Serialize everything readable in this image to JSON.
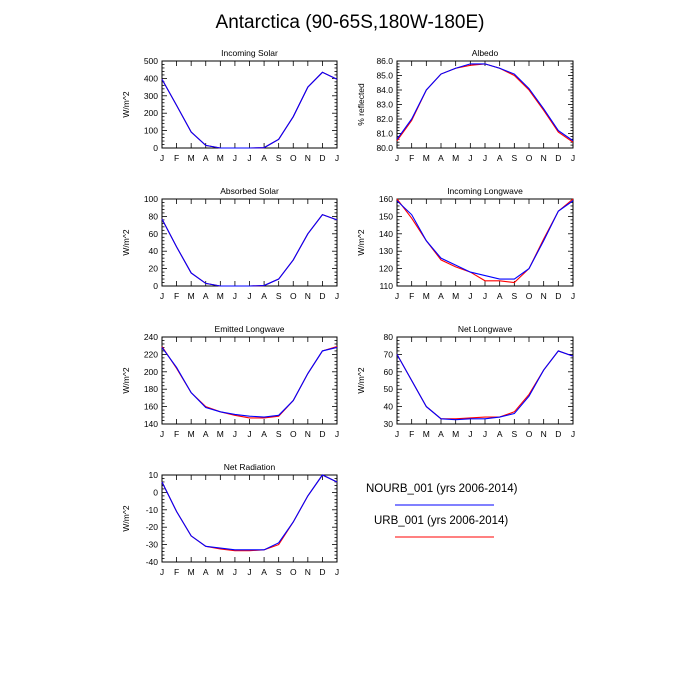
{
  "title": "Antarctica (90-65S,180W-180E)",
  "colors": {
    "NOURB_001": "#0000ff",
    "URB_001": "#ff0000"
  },
  "legend": [
    {
      "label": "NOURB_001 (yrs 2006-2014)",
      "color": "#0000ff"
    },
    {
      "label": "URB_001 (yrs 2006-2014)",
      "color": "#ff0000"
    }
  ],
  "chart_data": [
    {
      "type": "line",
      "title": "Incoming Solar",
      "ylabel": "W/m^2",
      "categories": [
        "J",
        "F",
        "M",
        "A",
        "M",
        "J",
        "J",
        "A",
        "S",
        "O",
        "N",
        "D",
        "J"
      ],
      "ylim": [
        0,
        500
      ],
      "yticks": [
        "0",
        "100",
        "200",
        "300",
        "400",
        "500"
      ],
      "series": [
        {
          "name": "NOURB_001 (yrs 2006-2014)",
          "values": [
            395,
            245,
            92,
            15,
            0,
            0,
            0,
            2,
            50,
            180,
            350,
            435,
            395
          ]
        },
        {
          "name": "URB_001 (yrs 2006-2014)",
          "values": [
            395,
            245,
            92,
            15,
            0,
            0,
            0,
            2,
            50,
            180,
            350,
            435,
            395
          ]
        }
      ]
    },
    {
      "type": "line",
      "title": "Albedo",
      "ylabel": "% reflected",
      "categories": [
        "J",
        "F",
        "M",
        "A",
        "M",
        "J",
        "J",
        "A",
        "S",
        "O",
        "N",
        "D",
        "J"
      ],
      "ylim": [
        80,
        86
      ],
      "yticks": [
        "80.0",
        "81.0",
        "82.0",
        "83.0",
        "84.0",
        "85.0",
        "86.0"
      ],
      "series": [
        {
          "name": "NOURB_001 (yrs 2006-2014)",
          "values": [
            80.6,
            82.0,
            84.0,
            85.1,
            85.5,
            85.8,
            85.8,
            85.5,
            85.1,
            84.1,
            82.7,
            81.2,
            80.5
          ]
        },
        {
          "name": "URB_001 (yrs 2006-2014)",
          "values": [
            80.5,
            81.9,
            84.0,
            85.1,
            85.5,
            85.7,
            85.8,
            85.5,
            85.0,
            84.0,
            82.6,
            81.1,
            80.4
          ]
        }
      ]
    },
    {
      "type": "line",
      "title": "Absorbed Solar",
      "ylabel": "W/m^2",
      "categories": [
        "J",
        "F",
        "M",
        "A",
        "M",
        "J",
        "J",
        "A",
        "S",
        "O",
        "N",
        "D",
        "J"
      ],
      "ylim": [
        0,
        100
      ],
      "yticks": [
        "0",
        "20",
        "40",
        "60",
        "80",
        "100"
      ],
      "series": [
        {
          "name": "NOURB_001 (yrs 2006-2014)",
          "values": [
            77,
            45,
            15,
            3,
            0,
            0,
            0,
            0.5,
            8,
            30,
            60,
            82,
            76
          ]
        },
        {
          "name": "URB_001 (yrs 2006-2014)",
          "values": [
            77,
            45,
            15,
            3,
            0,
            0,
            0,
            0.5,
            8,
            30,
            60,
            82,
            76
          ]
        }
      ]
    },
    {
      "type": "line",
      "title": "Incoming Longwave",
      "ylabel": "W/m^2",
      "categories": [
        "J",
        "F",
        "M",
        "A",
        "M",
        "J",
        "J",
        "A",
        "S",
        "O",
        "N",
        "D",
        "J"
      ],
      "ylim": [
        110,
        160
      ],
      "yticks": [
        "110",
        "120",
        "130",
        "140",
        "150",
        "160"
      ],
      "series": [
        {
          "name": "NOURB_001 (yrs 2006-2014)",
          "values": [
            159,
            151,
            136,
            126,
            122,
            118,
            116,
            114,
            114,
            120,
            136,
            153,
            159
          ]
        },
        {
          "name": "URB_001 (yrs 2006-2014)",
          "values": [
            160,
            149,
            136,
            125,
            121,
            118,
            113,
            113,
            112,
            120,
            137,
            153,
            160
          ]
        }
      ]
    },
    {
      "type": "line",
      "title": "Emitted Longwave",
      "ylabel": "W/m^2",
      "categories": [
        "J",
        "F",
        "M",
        "A",
        "M",
        "J",
        "J",
        "A",
        "S",
        "O",
        "N",
        "D",
        "J"
      ],
      "ylim": [
        140,
        240
      ],
      "yticks": [
        "140",
        "160",
        "180",
        "200",
        "220",
        "240"
      ],
      "series": [
        {
          "name": "NOURB_001 (yrs 2006-2014)",
          "values": [
            228,
            205,
            176,
            159,
            154,
            151,
            149,
            148,
            150,
            167,
            198,
            224,
            228
          ]
        },
        {
          "name": "URB_001 (yrs 2006-2014)",
          "values": [
            229,
            204,
            176,
            160,
            154,
            150,
            147,
            147,
            149,
            167,
            198,
            224,
            229
          ]
        }
      ]
    },
    {
      "type": "line",
      "title": "Net Longwave",
      "ylabel": "W/m^2",
      "categories": [
        "J",
        "F",
        "M",
        "A",
        "M",
        "J",
        "J",
        "A",
        "S",
        "O",
        "N",
        "D",
        "J"
      ],
      "ylim": [
        30,
        80
      ],
      "yticks": [
        "30",
        "40",
        "50",
        "60",
        "70",
        "80"
      ],
      "series": [
        {
          "name": "NOURB_001 (yrs 2006-2014)",
          "values": [
            70,
            55,
            40,
            33,
            32.5,
            33,
            33,
            34,
            36,
            46,
            61,
            72,
            69
          ]
        },
        {
          "name": "URB_001 (yrs 2006-2014)",
          "values": [
            70,
            55,
            40,
            33,
            33,
            33.5,
            34,
            34,
            37,
            47,
            61,
            72,
            69
          ]
        }
      ]
    },
    {
      "type": "line",
      "title": "Net Radiation",
      "ylabel": "W/m^2",
      "categories": [
        "J",
        "F",
        "M",
        "A",
        "M",
        "J",
        "J",
        "A",
        "S",
        "O",
        "N",
        "D",
        "J"
      ],
      "ylim": [
        -40,
        10
      ],
      "yticks": [
        "-40",
        "-30",
        "-20",
        "-10",
        "0",
        "10"
      ],
      "series": [
        {
          "name": "NOURB_001 (yrs 2006-2014)",
          "values": [
            6,
            -11,
            -25,
            -31,
            -32,
            -33,
            -33,
            -33,
            -29,
            -17,
            -2,
            10,
            6
          ]
        },
        {
          "name": "URB_001 (yrs 2006-2014)",
          "values": [
            6,
            -11,
            -25,
            -31,
            -32.5,
            -33.5,
            -33.5,
            -33,
            -30,
            -17,
            -2,
            10,
            6
          ]
        }
      ]
    }
  ]
}
